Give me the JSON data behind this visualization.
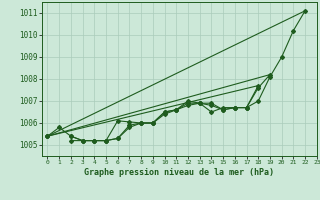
{
  "xlim": [
    -0.5,
    23
  ],
  "ylim": [
    1004.5,
    1011.5
  ],
  "yticks": [
    1005,
    1006,
    1007,
    1008,
    1009,
    1010,
    1011
  ],
  "xticks": [
    0,
    1,
    2,
    3,
    4,
    5,
    6,
    7,
    8,
    9,
    10,
    11,
    12,
    13,
    14,
    15,
    16,
    17,
    18,
    19,
    20,
    21,
    22,
    23
  ],
  "bg_color": "#cce8d8",
  "line_color": "#1e5c1e",
  "grid_color": "#aaccbb",
  "xlabel": "Graphe pression niveau de la mer (hPa)",
  "s1": [
    1005.4,
    1005.8,
    1005.4,
    1005.2,
    1005.2,
    1005.2,
    1005.3,
    1005.8,
    1006.0,
    1006.0,
    1006.4,
    1006.6,
    1006.8,
    1006.9,
    1006.8,
    1006.6,
    1006.7,
    1006.7,
    1007.0,
    1008.1,
    1009.0,
    1010.2,
    1011.1,
    null
  ],
  "s2": [
    1005.4,
    null,
    1005.4,
    1005.2,
    1005.2,
    1005.2,
    1005.3,
    1005.9,
    1006.0,
    1006.0,
    1006.5,
    1006.6,
    1006.9,
    1006.9,
    1006.5,
    1006.7,
    1006.7,
    1006.7,
    1007.6,
    1008.2,
    null,
    null,
    null,
    null
  ],
  "s3": [
    1005.4,
    null,
    1005.2,
    1005.2,
    1005.2,
    1005.2,
    1006.1,
    1006.05,
    1006.0,
    1006.0,
    1006.5,
    1006.6,
    1007.0,
    1006.9,
    1006.9,
    1006.6,
    1006.7,
    1006.7,
    1007.7,
    null,
    null,
    null,
    null,
    null
  ],
  "straight_lines": [
    [
      [
        0,
        1005.4
      ],
      [
        22,
        1011.1
      ]
    ],
    [
      [
        0,
        1005.4
      ],
      [
        19,
        1008.2
      ]
    ],
    [
      [
        0,
        1005.4
      ],
      [
        18,
        1007.7
      ]
    ]
  ]
}
